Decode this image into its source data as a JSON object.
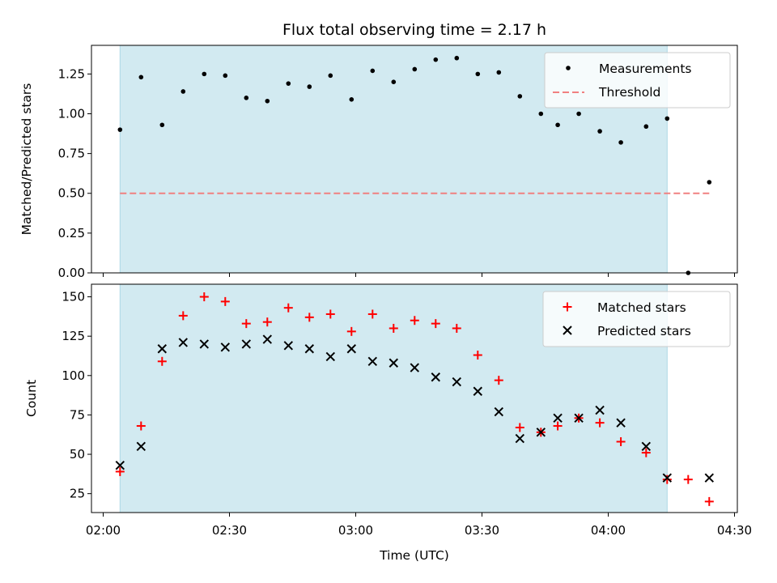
{
  "title": "Flux total observing time = 2.17 h",
  "colors": {
    "span": "#add8e6",
    "matched": "#ff0000",
    "predicted": "#000000",
    "threshold": "#f08080",
    "measurement": "#000000"
  },
  "chart_data": [
    {
      "type": "scatter",
      "ylabel": "Matched/Predicted stars",
      "ylim": [
        0,
        1.43
      ],
      "yticks": [
        "0.00",
        "0.25",
        "0.50",
        "0.75",
        "1.00",
        "1.25"
      ],
      "legend": "top-right",
      "shaded_span": [
        "02:04",
        "04:14"
      ],
      "series": [
        {
          "name": "Measurements",
          "x": [
            "02:04",
            "02:09",
            "02:14",
            "02:19",
            "02:24",
            "02:29",
            "02:34",
            "02:39",
            "02:44",
            "02:49",
            "02:54",
            "02:59",
            "03:04",
            "03:09",
            "03:14",
            "03:19",
            "03:24",
            "03:29",
            "03:34",
            "03:39",
            "03:44",
            "03:48",
            "03:53",
            "03:58",
            "04:03",
            "04:09",
            "04:14",
            "04:19",
            "04:24"
          ],
          "values": [
            0.9,
            1.23,
            0.93,
            1.14,
            1.25,
            1.24,
            1.1,
            1.08,
            1.19,
            1.17,
            1.24,
            1.09,
            1.27,
            1.2,
            1.28,
            1.34,
            1.35,
            1.25,
            1.26,
            1.11,
            1.0,
            0.93,
            1.0,
            0.89,
            0.82,
            0.92,
            0.97,
            0.0,
            0.57
          ]
        },
        {
          "name": "Threshold",
          "x": [
            "02:04",
            "04:24"
          ],
          "values": [
            0.5,
            0.5
          ]
        }
      ]
    },
    {
      "type": "scatter",
      "ylabel": "Count",
      "xlabel": "Time (UTC)",
      "ylim": [
        13,
        158
      ],
      "yticks": [
        "25",
        "50",
        "75",
        "100",
        "125",
        "150"
      ],
      "xticks": [
        "02:00",
        "02:30",
        "03:00",
        "03:30",
        "04:00",
        "04:30"
      ],
      "legend": "top-right",
      "shaded_span": [
        "02:04",
        "04:14"
      ],
      "series": [
        {
          "name": "Matched stars",
          "x": [
            "02:04",
            "02:09",
            "02:14",
            "02:19",
            "02:24",
            "02:29",
            "02:34",
            "02:39",
            "02:44",
            "02:49",
            "02:54",
            "02:59",
            "03:04",
            "03:09",
            "03:14",
            "03:19",
            "03:24",
            "03:29",
            "03:34",
            "03:39",
            "03:44",
            "03:48",
            "03:53",
            "03:58",
            "04:03",
            "04:09",
            "04:14",
            "04:19",
            "04:24"
          ],
          "values": [
            39,
            68,
            109,
            138,
            150,
            147,
            133,
            134,
            143,
            137,
            139,
            128,
            139,
            130,
            135,
            133,
            130,
            113,
            97,
            67,
            64,
            68,
            73,
            70,
            58,
            51,
            34,
            34,
            20
          ]
        },
        {
          "name": "Predicted stars",
          "x": [
            "02:04",
            "02:09",
            "02:14",
            "02:19",
            "02:24",
            "02:29",
            "02:34",
            "02:39",
            "02:44",
            "02:49",
            "02:54",
            "02:59",
            "03:04",
            "03:09",
            "03:14",
            "03:19",
            "03:24",
            "03:29",
            "03:34",
            "03:39",
            "03:44",
            "03:48",
            "03:53",
            "03:58",
            "04:03",
            "04:09",
            "04:14",
            "04:24"
          ],
          "values": [
            43,
            55,
            117,
            121,
            120,
            118,
            120,
            123,
            119,
            117,
            112,
            117,
            109,
            108,
            105,
            99,
            96,
            90,
            77,
            60,
            64,
            73,
            73,
            78,
            70,
            55,
            35,
            35
          ]
        }
      ]
    }
  ]
}
